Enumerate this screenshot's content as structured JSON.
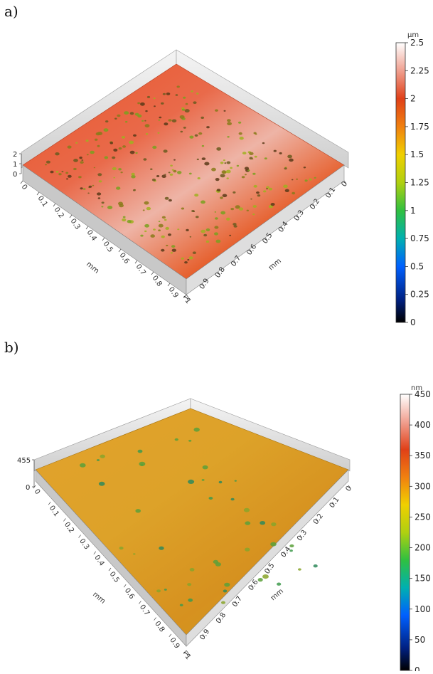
{
  "panels": [
    {
      "label": "a)",
      "unit": "µm",
      "colorbar_ticks": [
        "0",
        "0.25",
        "0.5",
        "0.75",
        "1",
        "1.25",
        "1.5",
        "1.75",
        "2",
        "2.25",
        "2.5"
      ],
      "z_ticks": [
        "0",
        "1",
        "2"
      ],
      "x_ticks": [
        "0",
        "0.1",
        "0.2",
        "0.3",
        "0.4",
        "0.5",
        "0.6",
        "0.7",
        "0.8",
        "0.9",
        "1"
      ],
      "y_ticks": [
        "0",
        "0.1",
        "0.2",
        "0.3",
        "0.4",
        "0.5",
        "0.6",
        "0.7",
        "0.8",
        "0.9",
        "1"
      ],
      "x_axis_label": "mm",
      "y_axis_label": "mm",
      "surface_color": "#e3532b",
      "surface_highlight": "#efc7bd",
      "pit_color": "#6a6a1a"
    },
    {
      "label": "b)",
      "unit": "nm",
      "colorbar_ticks": [
        "0",
        "50",
        "100",
        "150",
        "200",
        "250",
        "300",
        "350",
        "400",
        "450"
      ],
      "z_ticks": [
        "0",
        "455"
      ],
      "x_ticks": [
        "0",
        "0.1",
        "0.2",
        "0.3",
        "0.4",
        "0.5",
        "0.6",
        "0.7",
        "0.8",
        "0.9",
        "1"
      ],
      "y_ticks": [
        "0",
        "0.1",
        "0.2",
        "0.3",
        "0.4",
        "0.5",
        "0.6",
        "0.7",
        "0.8",
        "0.9",
        "1"
      ],
      "x_axis_label": "mm",
      "y_axis_label": "mm",
      "surface_color": "#d99a22",
      "surface_highlight": "#e8b34a",
      "pit_color": "#3e9a4c"
    }
  ]
}
